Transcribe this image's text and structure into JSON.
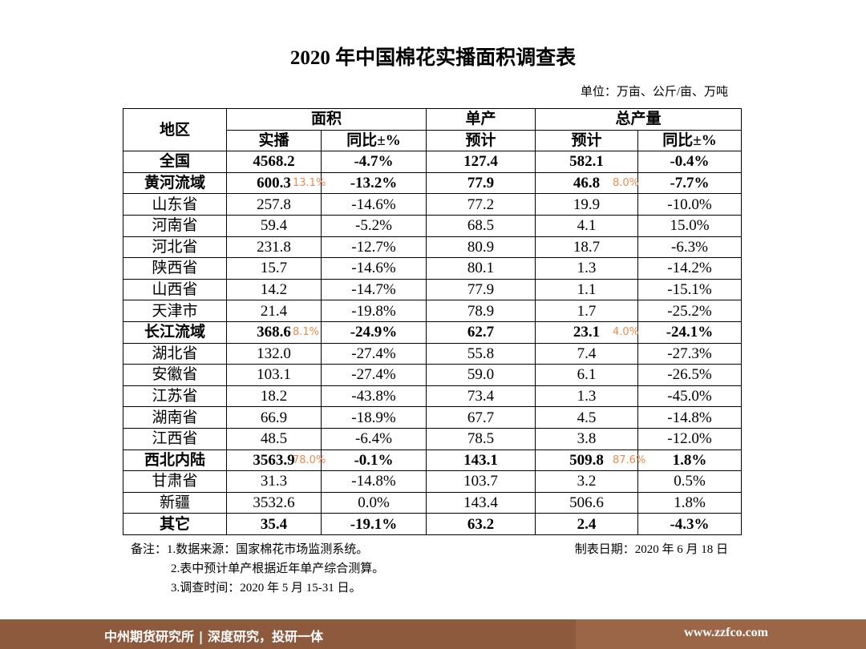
{
  "header": {
    "title": "2020 年中国棉花实播面积调查表",
    "unit": "单位：万亩、公斤/亩、万吨"
  },
  "table": {
    "header_top": [
      "地区",
      "面积",
      "单产",
      "总产量"
    ],
    "header_sub": [
      "实播",
      "同比±%",
      "预计",
      "预计",
      "同比±%"
    ],
    "rows": [
      {
        "cells": [
          "全国",
          "4568.2",
          "-4.7%",
          "127.4",
          "582.1",
          "-0.4%"
        ],
        "bold": true
      },
      {
        "cells": [
          "黄河流域",
          "600.3",
          "-13.2%",
          "77.9",
          "46.8",
          "-7.7%"
        ],
        "bold": true,
        "area_share": "13.1%",
        "output_share": "8.0%"
      },
      {
        "cells": [
          "山东省",
          "257.8",
          "-14.6%",
          "77.2",
          "19.9",
          "-10.0%"
        ]
      },
      {
        "cells": [
          "河南省",
          "59.4",
          "-5.2%",
          "68.5",
          "4.1",
          "15.0%"
        ]
      },
      {
        "cells": [
          "河北省",
          "231.8",
          "-12.7%",
          "80.9",
          "18.7",
          "-6.3%"
        ]
      },
      {
        "cells": [
          "陕西省",
          "15.7",
          "-14.6%",
          "80.1",
          "1.3",
          "-14.2%"
        ]
      },
      {
        "cells": [
          "山西省",
          "14.2",
          "-14.7%",
          "77.9",
          "1.1",
          "-15.1%"
        ]
      },
      {
        "cells": [
          "天津市",
          "21.4",
          "-19.8%",
          "78.9",
          "1.7",
          "-25.2%"
        ]
      },
      {
        "cells": [
          "长江流域",
          "368.6",
          "-24.9%",
          "62.7",
          "23.1",
          "-24.1%"
        ],
        "bold": true,
        "area_share": "8.1%",
        "output_share": "4.0%"
      },
      {
        "cells": [
          "湖北省",
          "132.0",
          "-27.4%",
          "55.8",
          "7.4",
          "-27.3%"
        ]
      },
      {
        "cells": [
          "安徽省",
          "103.1",
          "-27.4%",
          "59.0",
          "6.1",
          "-26.5%"
        ]
      },
      {
        "cells": [
          "江苏省",
          "18.2",
          "-43.8%",
          "73.4",
          "1.3",
          "-45.0%"
        ]
      },
      {
        "cells": [
          "湖南省",
          "66.9",
          "-18.9%",
          "67.7",
          "4.5",
          "-14.8%"
        ]
      },
      {
        "cells": [
          "江西省",
          "48.5",
          "-6.4%",
          "78.5",
          "3.8",
          "-12.0%"
        ]
      },
      {
        "cells": [
          "西北内陆",
          "3563.9",
          "-0.1%",
          "143.1",
          "509.8",
          "1.8%"
        ],
        "bold": true,
        "area_share": "78.0%",
        "output_share": "87.6%"
      },
      {
        "cells": [
          "甘肃省",
          "31.3",
          "-14.8%",
          "103.7",
          "3.2",
          "0.5%"
        ]
      },
      {
        "cells": [
          "新疆",
          "3532.6",
          "0.0%",
          "143.4",
          "506.6",
          "1.8%"
        ]
      },
      {
        "cells": [
          "其它",
          "35.4",
          "-19.1%",
          "63.2",
          "2.4",
          "-4.3%"
        ],
        "bold": true
      }
    ]
  },
  "notes": [
    "备注：1.数据来源：国家棉花市场监测系统。",
    "2.表中预计单产根据近年单产综合测算。",
    "3.调查时间：2020 年 5 月 15-31 日。"
  ],
  "date": "制表日期：2020 年 6 月 18 日",
  "footer": {
    "left": "中州期货研究所 | 深度研究，投研一体",
    "right": "www.zzfco.com"
  }
}
